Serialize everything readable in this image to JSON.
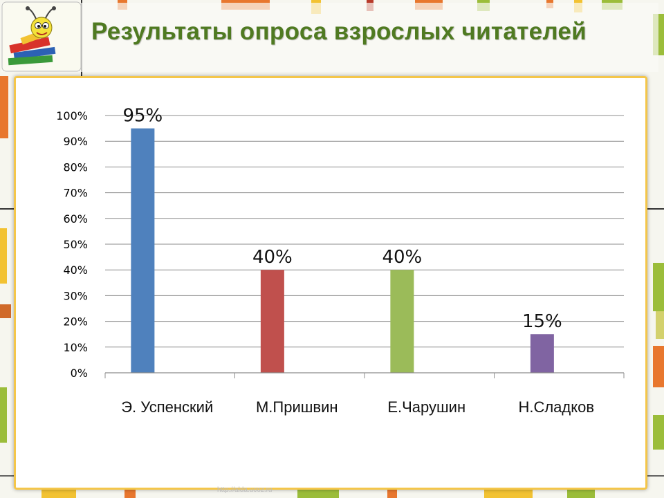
{
  "slide": {
    "title": "Результаты опроса  взрослых читателей",
    "footer_url": "http://alda.ucoz.ru",
    "title_color": "#4f7a21",
    "logo_icon": "reading-worm-with-books-icon"
  },
  "chart_data": {
    "type": "bar",
    "title": "",
    "xlabel": "",
    "ylabel": "",
    "categories": [
      "Э. Успенский",
      "М.Пришвин",
      "Е.Чарушин",
      "Н.Сладков"
    ],
    "values": [
      95,
      40,
      40,
      15
    ],
    "value_labels": [
      "95%",
      "40%",
      "40%",
      "15%"
    ],
    "bar_colors": [
      "#4f81bd",
      "#c0504d",
      "#9bbb59",
      "#8064a2"
    ],
    "ylim": [
      0,
      100
    ],
    "yticks": [
      0,
      10,
      20,
      30,
      40,
      50,
      60,
      70,
      80,
      90,
      100
    ],
    "ytick_labels": [
      "0%",
      "10%",
      "20%",
      "30%",
      "40%",
      "50%",
      "60%",
      "70%",
      "80%",
      "90%",
      "100%"
    ],
    "grid": true,
    "legend": "none"
  }
}
